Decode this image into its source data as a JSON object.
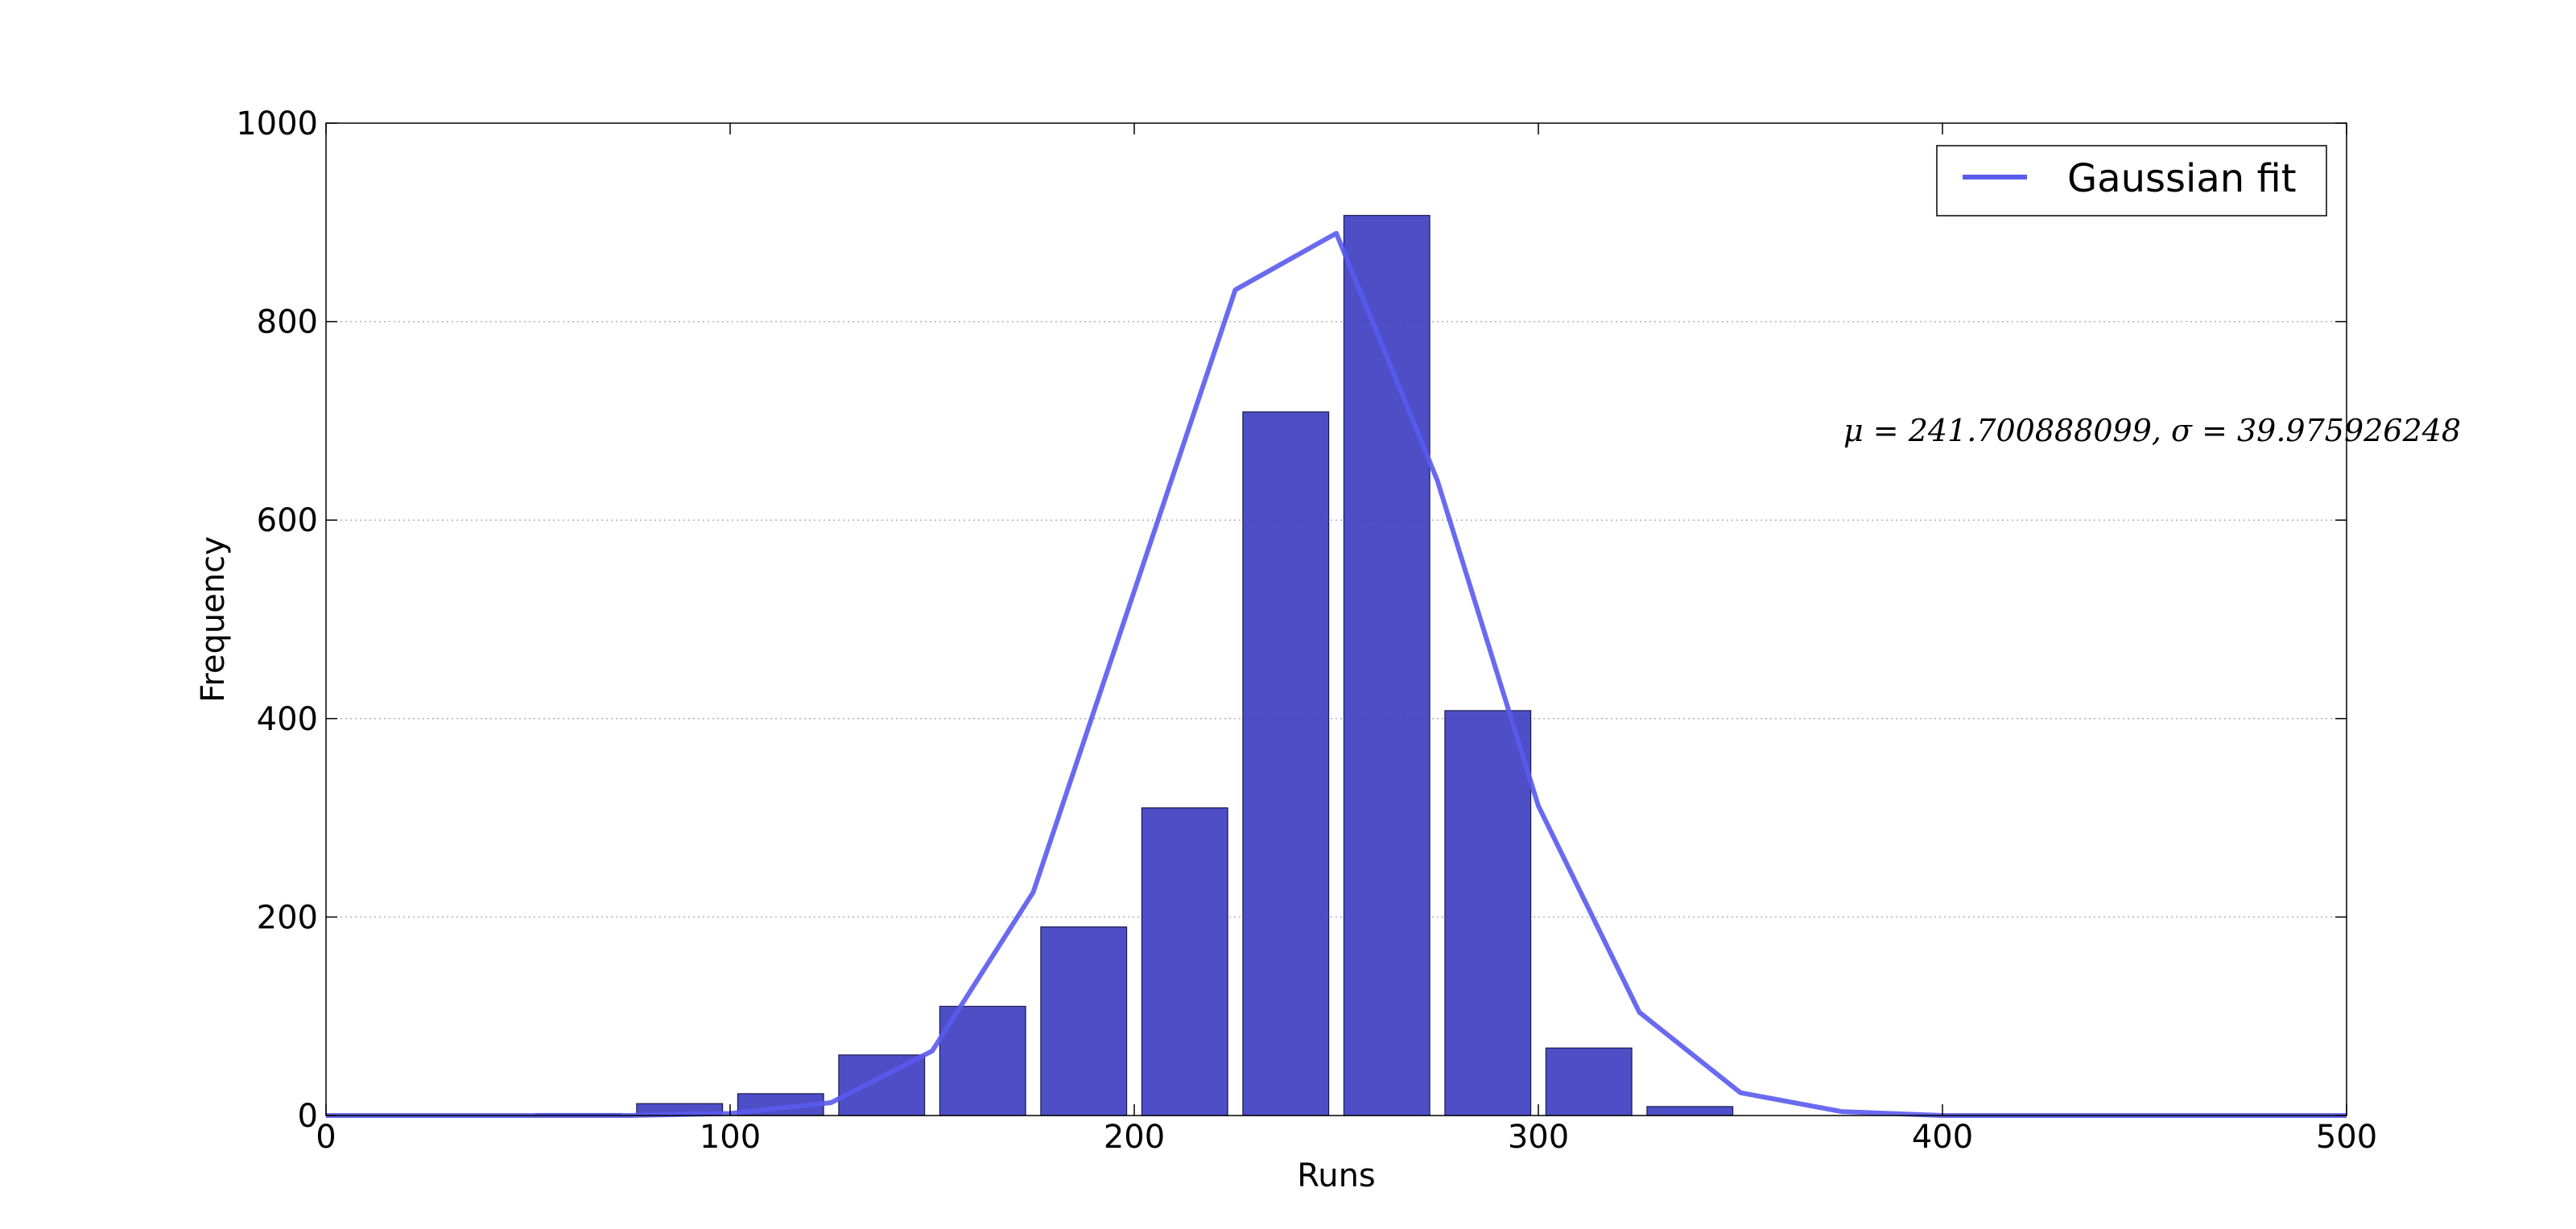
{
  "chart_data": {
    "type": "bar",
    "title": "",
    "xlabel": "Runs",
    "ylabel": "Frequency",
    "xlim": [
      0,
      500
    ],
    "ylim": [
      0,
      1000
    ],
    "xticks": [
      0,
      100,
      200,
      300,
      400,
      500
    ],
    "yticks": [
      0,
      200,
      400,
      600,
      800,
      1000
    ],
    "x_tick_labels": [
      "0",
      "100",
      "200",
      "300",
      "400",
      "500"
    ],
    "y_tick_labels": [
      "0",
      "200",
      "400",
      "600",
      "800",
      "1000"
    ],
    "grid": "horizontal, dotted",
    "legend_placement": "top-right",
    "legend_label": "Gaussian fit",
    "bar_color": "#3f3fc2",
    "line_color": "#5a5aee",
    "bins": [
      {
        "x_start": 50,
        "x_end": 75,
        "value": 2
      },
      {
        "x_start": 75,
        "x_end": 100,
        "value": 12
      },
      {
        "x_start": 100,
        "x_end": 125,
        "value": 22
      },
      {
        "x_start": 125,
        "x_end": 150,
        "value": 61
      },
      {
        "x_start": 150,
        "x_end": 175,
        "value": 110
      },
      {
        "x_start": 175,
        "x_end": 200,
        "value": 190
      },
      {
        "x_start": 200,
        "x_end": 225,
        "value": 310
      },
      {
        "x_start": 225,
        "x_end": 250,
        "value": 709
      },
      {
        "x_start": 250,
        "x_end": 275,
        "value": 907
      },
      {
        "x_start": 275,
        "x_end": 300,
        "value": 408
      },
      {
        "x_start": 300,
        "x_end": 325,
        "value": 68
      },
      {
        "x_start": 325,
        "x_end": 350,
        "value": 9
      }
    ],
    "series": [
      {
        "name": "Gaussian fit",
        "x": [
          0,
          25,
          50,
          75,
          100,
          125,
          150,
          175,
          225,
          250,
          275,
          300,
          325,
          350,
          375,
          400,
          425,
          450,
          475,
          500
        ],
        "y": [
          0,
          0,
          0,
          0,
          2,
          13,
          65,
          225,
          832,
          889,
          640,
          312,
          104,
          23,
          4,
          0,
          0,
          0,
          0,
          0
        ]
      }
    ],
    "annotation": "μ = 241.700888099, σ = 39.975926248"
  }
}
